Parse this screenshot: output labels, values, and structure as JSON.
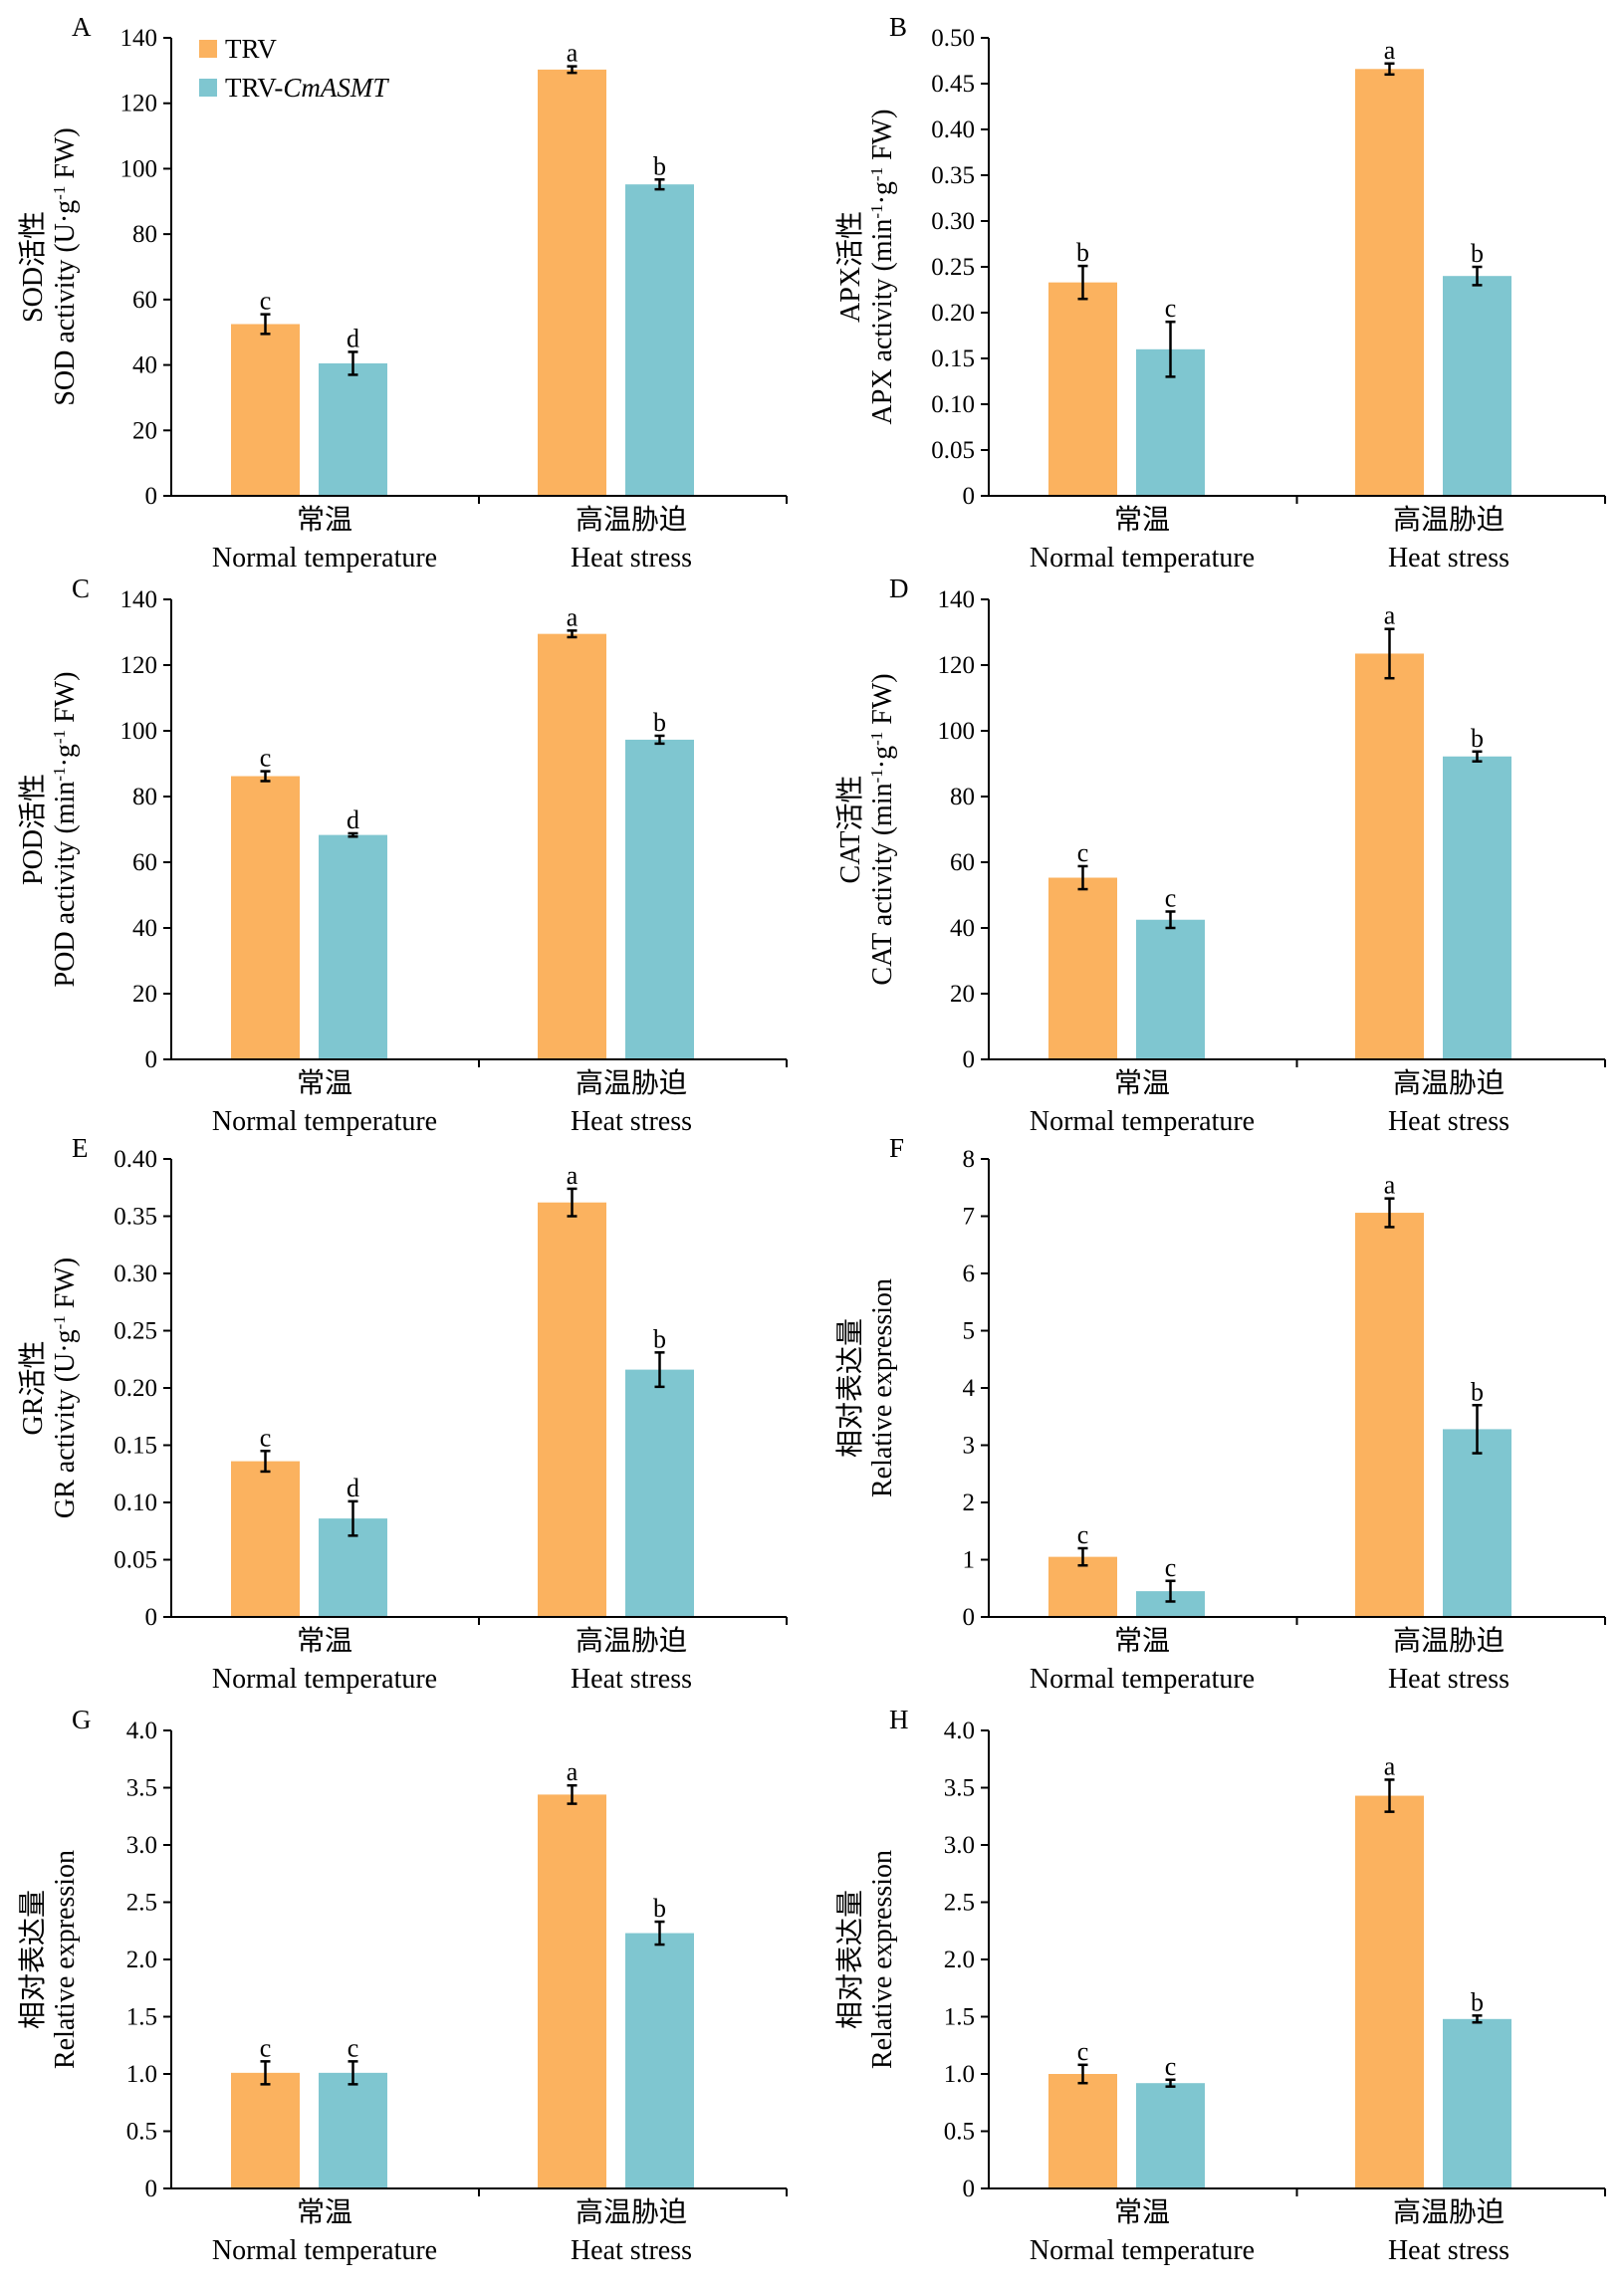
{
  "colors": {
    "TRV": "#FBB25F",
    "TRV-CmASMT": "#7FC6D0",
    "axis": "#000000"
  },
  "legend": {
    "items": [
      {
        "series": "TRV",
        "label": "TRV",
        "italic": ""
      },
      {
        "series": "TRV-CmASMT",
        "label": "TRV-",
        "italic": "CmASMT"
      }
    ]
  },
  "chart_data": [
    {
      "panel": "A",
      "type": "bar",
      "ylabel": {
        "cn": "SOD活性",
        "en": "SOD activity (U·g",
        "sup": "-1",
        "en_tail": " FW)"
      },
      "ylim": [
        0,
        140
      ],
      "yticks": [
        "0",
        "20",
        "40",
        "60",
        "80",
        "100",
        "120",
        "140"
      ],
      "categories": [
        {
          "cn": "常温",
          "en": "Normal temperature"
        },
        {
          "cn": "高温胁迫",
          "en": "Heat stress"
        }
      ],
      "series": [
        {
          "name": "TRV",
          "values": [
            52.5,
            130.3
          ],
          "errors": [
            3.0,
            1.0
          ],
          "letters": [
            "c",
            "a"
          ]
        },
        {
          "name": "TRV-CmASMT",
          "values": [
            40.5,
            95.2
          ],
          "errors": [
            3.5,
            1.5
          ],
          "letters": [
            "d",
            "b"
          ]
        }
      ]
    },
    {
      "panel": "B",
      "type": "bar",
      "ylabel": {
        "cn": "APX活性",
        "en": "APX activity (min",
        "sup": "-1",
        "mid": "·g",
        "sup2": "-1",
        "en_tail": " FW)"
      },
      "ylim": [
        0,
        0.5
      ],
      "yticks": [
        "0",
        "0.05",
        "0.10",
        "0.15",
        "0.20",
        "0.25",
        "0.30",
        "0.35",
        "0.40",
        "0.45",
        "0.50"
      ],
      "categories": [
        {
          "cn": "常温",
          "en": "Normal temperature"
        },
        {
          "cn": "高温胁迫",
          "en": "Heat stress"
        }
      ],
      "series": [
        {
          "name": "TRV",
          "values": [
            0.233,
            0.466
          ],
          "errors": [
            0.018,
            0.006
          ],
          "letters": [
            "b",
            "a"
          ]
        },
        {
          "name": "TRV-CmASMT",
          "values": [
            0.16,
            0.24
          ],
          "errors": [
            0.03,
            0.01
          ],
          "letters": [
            "c",
            "b"
          ]
        }
      ]
    },
    {
      "panel": "C",
      "type": "bar",
      "ylabel": {
        "cn": "POD活性",
        "en": "POD activity (min",
        "sup": "-1",
        "mid": "·g",
        "sup2": "-1",
        "en_tail": " FW)"
      },
      "ylim": [
        0,
        140
      ],
      "yticks": [
        "0",
        "20",
        "40",
        "60",
        "80",
        "100",
        "120",
        "140"
      ],
      "categories": [
        {
          "cn": "常温",
          "en": "Normal temperature"
        },
        {
          "cn": "高温胁迫",
          "en": "Heat stress"
        }
      ],
      "series": [
        {
          "name": "TRV",
          "values": [
            86.2,
            129.5
          ],
          "errors": [
            1.5,
            1.0
          ],
          "letters": [
            "c",
            "a"
          ]
        },
        {
          "name": "TRV-CmASMT",
          "values": [
            68.3,
            97.3
          ],
          "errors": [
            0.5,
            1.2
          ],
          "letters": [
            "d",
            "b"
          ]
        }
      ]
    },
    {
      "panel": "D",
      "type": "bar",
      "ylabel": {
        "cn": "CAT活性",
        "en": "CAT activity (min",
        "sup": "-1",
        "mid": "·g",
        "sup2": "-1",
        "en_tail": " FW)"
      },
      "ylim": [
        0,
        140
      ],
      "yticks": [
        "0",
        "20",
        "40",
        "60",
        "80",
        "100",
        "120",
        "140"
      ],
      "categories": [
        {
          "cn": "常温",
          "en": "Normal temperature"
        },
        {
          "cn": "高温胁迫",
          "en": "Heat stress"
        }
      ],
      "series": [
        {
          "name": "TRV",
          "values": [
            55.3,
            123.5
          ],
          "errors": [
            3.5,
            7.5
          ],
          "letters": [
            "c",
            "a"
          ]
        },
        {
          "name": "TRV-CmASMT",
          "values": [
            42.5,
            92.2
          ],
          "errors": [
            2.5,
            1.5
          ],
          "letters": [
            "c",
            "b"
          ]
        }
      ]
    },
    {
      "panel": "E",
      "type": "bar",
      "ylabel": {
        "cn": "GR活性",
        "en": "GR activity (U·g",
        "sup": "-1",
        "en_tail": " FW)"
      },
      "ylim": [
        0,
        0.4
      ],
      "yticks": [
        "0",
        "0.05",
        "0.10",
        "0.15",
        "0.20",
        "0.25",
        "0.30",
        "0.35",
        "0.40"
      ],
      "categories": [
        {
          "cn": "常温",
          "en": "Normal temperature"
        },
        {
          "cn": "高温胁迫",
          "en": "Heat stress"
        }
      ],
      "series": [
        {
          "name": "TRV",
          "values": [
            0.136,
            0.362
          ],
          "errors": [
            0.009,
            0.012
          ],
          "letters": [
            "c",
            "a"
          ]
        },
        {
          "name": "TRV-CmASMT",
          "values": [
            0.086,
            0.216
          ],
          "errors": [
            0.015,
            0.015
          ],
          "letters": [
            "d",
            "b"
          ]
        }
      ]
    },
    {
      "panel": "F",
      "type": "bar",
      "ylabel": {
        "cn": "相对表达量",
        "en": "Relative expression"
      },
      "ylim": [
        0,
        8
      ],
      "yticks": [
        "0",
        "1",
        "2",
        "3",
        "4",
        "5",
        "6",
        "7",
        "8"
      ],
      "categories": [
        {
          "cn": "常温",
          "en": "Normal temperature"
        },
        {
          "cn": "高温胁迫",
          "en": "Heat stress"
        }
      ],
      "series": [
        {
          "name": "TRV",
          "values": [
            1.05,
            7.06
          ],
          "errors": [
            0.15,
            0.25
          ],
          "letters": [
            "c",
            "a"
          ]
        },
        {
          "name": "TRV-CmASMT",
          "values": [
            0.45,
            3.28
          ],
          "errors": [
            0.18,
            0.42
          ],
          "letters": [
            "c",
            "b"
          ]
        }
      ]
    },
    {
      "panel": "G",
      "type": "bar",
      "ylabel": {
        "cn": "相对表达量",
        "en": "Relative expression"
      },
      "ylim": [
        0,
        4
      ],
      "yticks": [
        "0",
        "0.5",
        "1.0",
        "1.5",
        "2.0",
        "2.5",
        "3.0",
        "3.5",
        "4.0"
      ],
      "categories": [
        {
          "cn": "常温",
          "en": "Normal temperature"
        },
        {
          "cn": "高温胁迫",
          "en": "Heat stress"
        }
      ],
      "series": [
        {
          "name": "TRV",
          "values": [
            1.01,
            3.44
          ],
          "errors": [
            0.1,
            0.08
          ],
          "letters": [
            "c",
            "a"
          ]
        },
        {
          "name": "TRV-CmASMT",
          "values": [
            1.01,
            2.23
          ],
          "errors": [
            0.1,
            0.1
          ],
          "letters": [
            "c",
            "b"
          ]
        }
      ]
    },
    {
      "panel": "H",
      "type": "bar",
      "ylabel": {
        "cn": "相对表达量",
        "en": "Relative expression"
      },
      "ylim": [
        0,
        4
      ],
      "yticks": [
        "0",
        "0.5",
        "1.0",
        "1.5",
        "2.0",
        "2.5",
        "3.0",
        "3.5",
        "4.0"
      ],
      "categories": [
        {
          "cn": "常温",
          "en": "Normal temperature"
        },
        {
          "cn": "高温胁迫",
          "en": "Heat stress"
        }
      ],
      "series": [
        {
          "name": "TRV",
          "values": [
            1.0,
            3.43
          ],
          "errors": [
            0.08,
            0.14
          ],
          "letters": [
            "c",
            "a"
          ]
        },
        {
          "name": "TRV-CmASMT",
          "values": [
            0.92,
            1.48
          ],
          "errors": [
            0.03,
            0.03
          ],
          "letters": [
            "c",
            "b"
          ]
        }
      ]
    }
  ]
}
